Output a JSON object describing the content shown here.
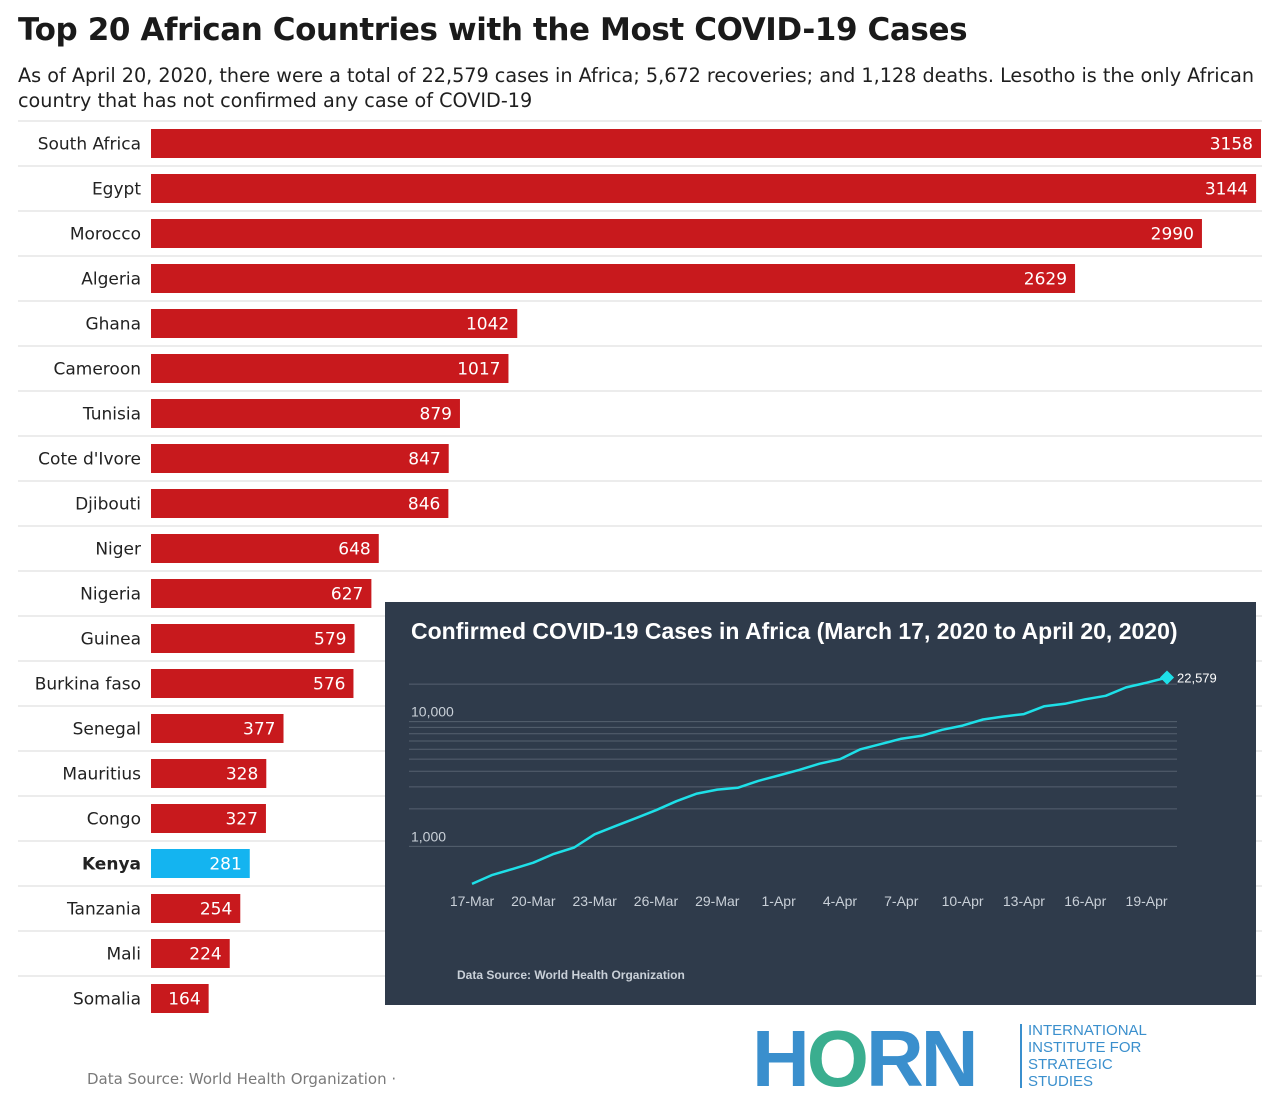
{
  "header": {
    "title": "Top 20 African Countries with the Most COVID-19 Cases",
    "subtitle": "As of April 20, 2020, there were a total of 22,579 cases in Africa; 5,672 recoveries; and 1,128 deaths. Lesotho is the only African country that has not confirmed any case of COVID-19"
  },
  "colors": {
    "bar": "#c8191d",
    "highlight": "#14b4f0",
    "inset_bg": "#2f3b4b",
    "inset_line": "#1ee0e8"
  },
  "chart_data": [
    {
      "type": "bar",
      "orientation": "horizontal",
      "categories": [
        "South Africa",
        "Egypt",
        "Morocco",
        "Algeria",
        "Ghana",
        "Cameroon",
        "Tunisia",
        "Cote d'Ivore",
        "Djibouti",
        "Niger",
        "Nigeria",
        "Guinea",
        "Burkina faso",
        "Senegal",
        "Mauritius",
        "Congo",
        "Kenya",
        "Tanzania",
        "Mali",
        "Somalia"
      ],
      "values": [
        3158,
        3144,
        2990,
        2629,
        1042,
        1017,
        879,
        847,
        846,
        648,
        627,
        579,
        576,
        377,
        328,
        327,
        281,
        254,
        224,
        164
      ],
      "highlight": "Kenya",
      "xlim": [
        0,
        3158
      ]
    },
    {
      "type": "line",
      "title": "Confirmed COVID-19 Cases in Africa (March 17, 2020 to April 20, 2020)",
      "scale": "log",
      "ylim": [
        400,
        25000
      ],
      "y_ticks": [
        1000,
        10000
      ],
      "y_tick_labels": [
        "1,000",
        "10,000"
      ],
      "x_tick_labels": [
        "17-Mar",
        "20-Mar",
        "23-Mar",
        "26-Mar",
        "29-Mar",
        "1-Apr",
        "4-Apr",
        "7-Apr",
        "10-Apr",
        "13-Apr",
        "16-Apr",
        "19-Apr"
      ],
      "x": [
        "17-Mar",
        "18-Mar",
        "19-Mar",
        "20-Mar",
        "21-Mar",
        "22-Mar",
        "23-Mar",
        "24-Mar",
        "25-Mar",
        "26-Mar",
        "27-Mar",
        "28-Mar",
        "29-Mar",
        "30-Mar",
        "31-Mar",
        "1-Apr",
        "2-Apr",
        "3-Apr",
        "4-Apr",
        "5-Apr",
        "6-Apr",
        "7-Apr",
        "8-Apr",
        "9-Apr",
        "10-Apr",
        "11-Apr",
        "12-Apr",
        "13-Apr",
        "14-Apr",
        "15-Apr",
        "16-Apr",
        "17-Apr",
        "18-Apr",
        "19-Apr",
        "20-Apr"
      ],
      "values": [
        500,
        590,
        660,
        740,
        870,
        980,
        1250,
        1450,
        1680,
        1950,
        2300,
        2650,
        2850,
        2950,
        3350,
        3700,
        4100,
        4600,
        5000,
        6000,
        6600,
        7300,
        7700,
        8600,
        9300,
        10400,
        11000,
        11500,
        13300,
        13900,
        15100,
        16100,
        18800,
        20500,
        22579
      ],
      "end_label": "22,579"
    }
  ],
  "inset": {
    "source": "Data Source: World Health Organization"
  },
  "footer": {
    "source": "Data Source: World Health Organization ·"
  },
  "logo": {
    "word_a": "H",
    "word_o": "O",
    "word_b": "RN",
    "org_lines": [
      "INTERNATIONAL",
      "INSTITUTE FOR",
      "STRATEGIC",
      "STUDIES"
    ]
  }
}
